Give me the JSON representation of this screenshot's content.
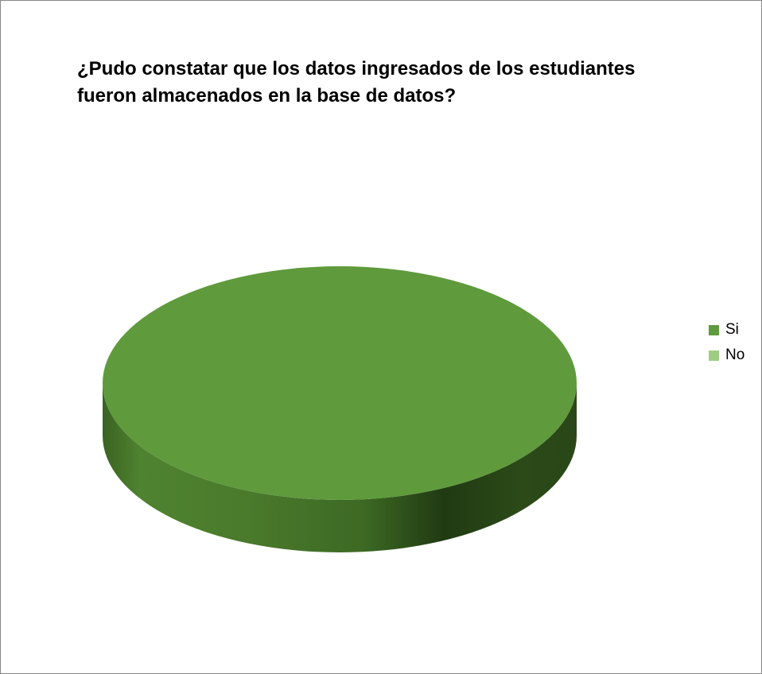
{
  "chart_data": {
    "type": "pie",
    "title": "¿Pudo constatar que los datos ingresados de los estudiantes fueron almacenados en la base de datos?",
    "categories": [
      "Si",
      "No"
    ],
    "values": [
      100,
      0
    ],
    "colors": [
      "#5f9a3c",
      "#9fcc83"
    ],
    "style": "3d",
    "legend_position": "right"
  }
}
